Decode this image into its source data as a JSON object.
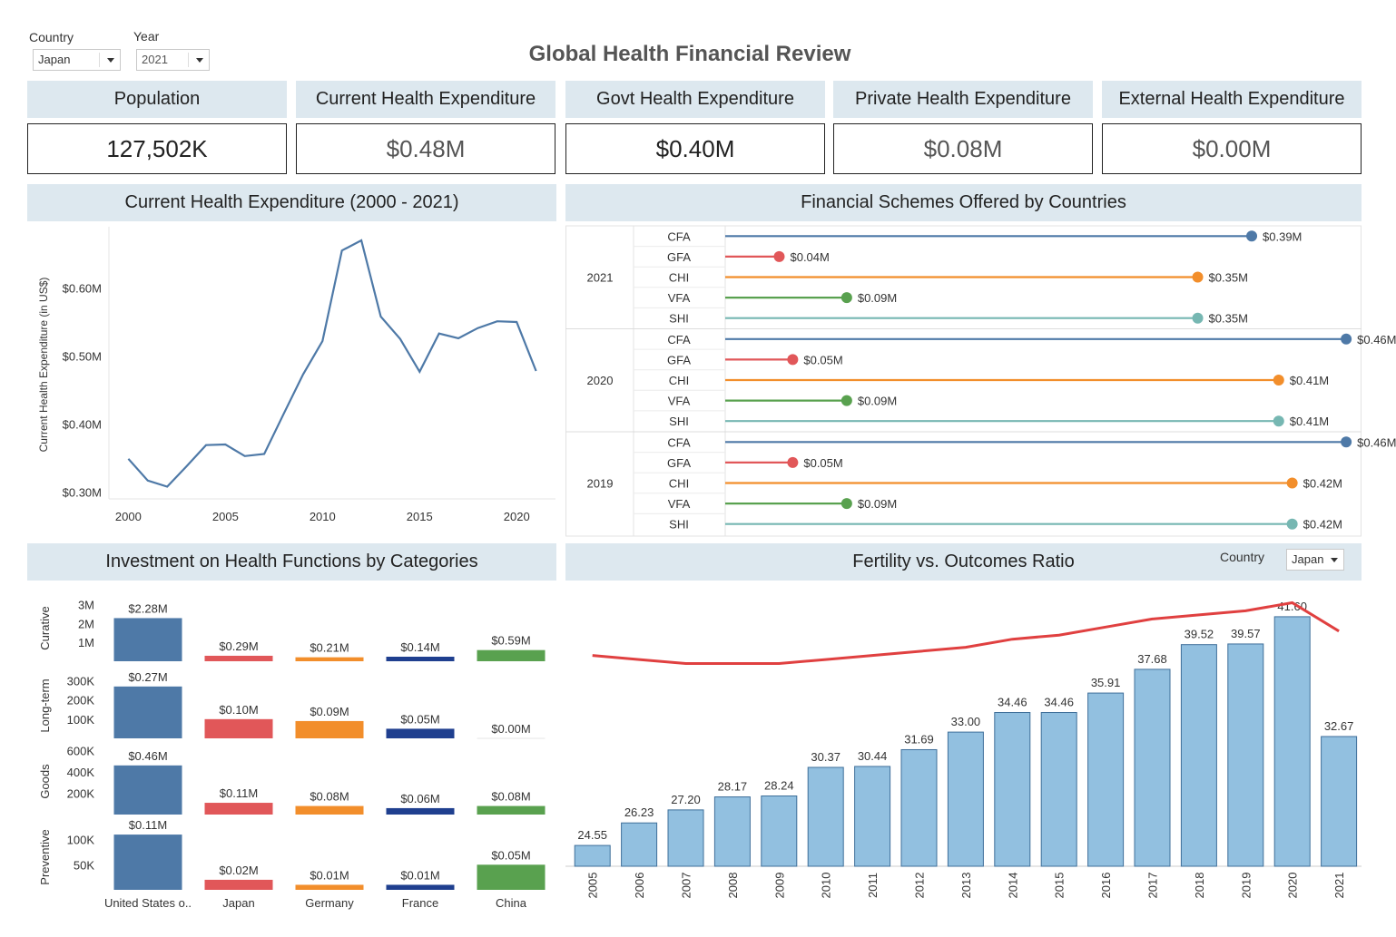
{
  "filters": {
    "country_label": "Country",
    "country_value": "Japan",
    "year_label": "Year",
    "year_value": "2021"
  },
  "dashboard_title": "Global Health Financial Review",
  "kpis": [
    {
      "label": "Population",
      "value": "127,502K"
    },
    {
      "label": "Current Health Expenditure",
      "value": "$0.48M"
    },
    {
      "label": "Govt Health Expenditure",
      "value": "$0.40M"
    },
    {
      "label": "Private Health Expenditure",
      "value": "$0.08M"
    },
    {
      "label": "External Health Expenditure",
      "value": "$0.00M"
    }
  ],
  "panels": {
    "che_title": "Current Health Expenditure (2000 - 2021)",
    "schemes_title": "Financial Schemes Offered by Countries",
    "functions_title": "Investment on Health Functions by Categories",
    "fertility_title": "Fertility vs. Outcomes Ratio",
    "fertility_country_label": "Country",
    "fertility_country_value": "Japan"
  },
  "colors": {
    "header_bg": "#dde8ef",
    "us_blue": "#4e79a7",
    "japan_red": "#e15759",
    "germany_orange": "#f28e2b",
    "france_navy": "#1f3f8f",
    "china_green": "#59a14f",
    "teal": "#76b7b2",
    "light_blue_bar": "#92c0e0",
    "ratio_line": "#e04040"
  },
  "chart_data": [
    {
      "type": "line",
      "title": "Current Health Expenditure (2000 - 2021)",
      "ylabel": "Current Health Expenditure (in US$)",
      "xlabel": "",
      "x_ticks": [
        "2000",
        "2005",
        "2010",
        "2015",
        "2020"
      ],
      "y_ticks": [
        "$0.30M",
        "$0.40M",
        "$0.50M",
        "$0.60M"
      ],
      "ylim": [
        0.29,
        0.69
      ],
      "xlim": [
        1999,
        2022
      ],
      "x": [
        2000,
        2001,
        2002,
        2003,
        2004,
        2005,
        2006,
        2007,
        2008,
        2009,
        2010,
        2011,
        2012,
        2013,
        2014,
        2015,
        2016,
        2017,
        2018,
        2019,
        2020,
        2021
      ],
      "values": [
        0.349,
        0.317,
        0.308,
        0.338,
        0.369,
        0.37,
        0.353,
        0.356,
        0.415,
        0.473,
        0.522,
        0.655,
        0.67,
        0.558,
        0.525,
        0.477,
        0.533,
        0.526,
        0.541,
        0.551,
        0.55,
        0.478
      ],
      "color": "#4e79a7",
      "grid": false
    },
    {
      "type": "bar",
      "title": "Financial Schemes Offered by Countries",
      "orientation": "horizontal-lollipop",
      "groups": [
        {
          "year": "2021",
          "items": [
            {
              "scheme": "CFA",
              "value": 0.39,
              "label": "$0.39M",
              "color": "#4e79a7"
            },
            {
              "scheme": "GFA",
              "value": 0.04,
              "label": "$0.04M",
              "color": "#e15759"
            },
            {
              "scheme": "CHI",
              "value": 0.35,
              "label": "$0.35M",
              "color": "#f28e2b"
            },
            {
              "scheme": "VFA",
              "value": 0.09,
              "label": "$0.09M",
              "color": "#59a14f"
            },
            {
              "scheme": "SHI",
              "value": 0.35,
              "label": "$0.35M",
              "color": "#76b7b2"
            }
          ]
        },
        {
          "year": "2020",
          "items": [
            {
              "scheme": "CFA",
              "value": 0.46,
              "label": "$0.46M",
              "color": "#4e79a7"
            },
            {
              "scheme": "GFA",
              "value": 0.05,
              "label": "$0.05M",
              "color": "#e15759"
            },
            {
              "scheme": "CHI",
              "value": 0.41,
              "label": "$0.41M",
              "color": "#f28e2b"
            },
            {
              "scheme": "VFA",
              "value": 0.09,
              "label": "$0.09M",
              "color": "#59a14f"
            },
            {
              "scheme": "SHI",
              "value": 0.41,
              "label": "$0.41M",
              "color": "#76b7b2"
            }
          ]
        },
        {
          "year": "2019",
          "items": [
            {
              "scheme": "CFA",
              "value": 0.46,
              "label": "$0.46M",
              "color": "#4e79a7"
            },
            {
              "scheme": "GFA",
              "value": 0.05,
              "label": "$0.05M",
              "color": "#e15759"
            },
            {
              "scheme": "CHI",
              "value": 0.42,
              "label": "$0.42M",
              "color": "#f28e2b"
            },
            {
              "scheme": "VFA",
              "value": 0.09,
              "label": "$0.09M",
              "color": "#59a14f"
            },
            {
              "scheme": "SHI",
              "value": 0.42,
              "label": "$0.42M",
              "color": "#76b7b2"
            }
          ]
        }
      ],
      "xlim": [
        0,
        0.47
      ]
    },
    {
      "type": "bar",
      "title": "Investment on Health Functions by Categories",
      "categories": [
        "United States o..",
        "Japan",
        "Germany",
        "France",
        "China"
      ],
      "category_colors": [
        "#4e79a7",
        "#e15759",
        "#f28e2b",
        "#1f3f8f",
        "#59a14f"
      ],
      "rows": [
        {
          "name": "Curative",
          "ylim": [
            0,
            3.5
          ],
          "unit": "M",
          "y_ticks": [
            {
              "value": 1,
              "label": "1M"
            },
            {
              "value": 2,
              "label": "2M"
            },
            {
              "value": 3,
              "label": "3M"
            }
          ],
          "values": [
            2.28,
            0.29,
            0.21,
            0.14,
            0.59
          ],
          "labels": [
            "$2.28M",
            "$0.29M",
            "$0.21M",
            "$0.14M",
            "$0.59M"
          ]
        },
        {
          "name": "Long-term",
          "ylim": [
            0,
            340
          ],
          "unit": "K",
          "y_ticks": [
            {
              "value": 100,
              "label": "100K"
            },
            {
              "value": 200,
              "label": "200K"
            },
            {
              "value": 300,
              "label": "300K"
            }
          ],
          "values": [
            270,
            100,
            90,
            50,
            0
          ],
          "labels": [
            "$0.27M",
            "$0.10M",
            "$0.09M",
            "$0.05M",
            "$0.00M"
          ]
        },
        {
          "name": "Goods",
          "ylim": [
            0,
            620
          ],
          "unit": "K",
          "y_ticks": [
            {
              "value": 200,
              "label": "200K"
            },
            {
              "value": 400,
              "label": "400K"
            },
            {
              "value": 600,
              "label": "600K"
            }
          ],
          "values": [
            460,
            110,
            80,
            60,
            80
          ],
          "labels": [
            "$0.46M",
            "$0.11M",
            "$0.08M",
            "$0.06M",
            "$0.08M"
          ]
        },
        {
          "name": "Preventive",
          "ylim": [
            0,
            130
          ],
          "unit": "K",
          "y_ticks": [
            {
              "value": 50,
              "label": "50K"
            },
            {
              "value": 100,
              "label": "100K"
            }
          ],
          "values": [
            110,
            20,
            10,
            10,
            50
          ],
          "labels": [
            "$0.11M",
            "$0.02M",
            "$0.01M",
            "$0.01M",
            "$0.05M"
          ]
        }
      ]
    },
    {
      "type": "bar",
      "title": "Fertility vs. Outcomes Ratio",
      "categories": [
        "2005",
        "2006",
        "2007",
        "2008",
        "2009",
        "2010",
        "2011",
        "2012",
        "2013",
        "2014",
        "2015",
        "2016",
        "2017",
        "2018",
        "2019",
        "2020",
        "2021"
      ],
      "series": [
        {
          "values": [
            24.55,
            26.23,
            27.2,
            28.17,
            28.24,
            30.37,
            30.44,
            31.69,
            33.0,
            34.46,
            34.46,
            35.91,
            37.68,
            39.52,
            39.57,
            41.6,
            32.67
          ],
          "labels": [
            "24.55",
            "26.23",
            "27.20",
            "28.17",
            "28.24",
            "30.37",
            "30.44",
            "31.69",
            "33.00",
            "34.46",
            "34.46",
            "35.91",
            "37.68",
            "39.52",
            "39.57",
            "41.60",
            "32.67"
          ]
        }
      ],
      "line_overlay": {
        "values": [
          0.83,
          0.82,
          0.81,
          0.81,
          0.81,
          0.82,
          0.83,
          0.84,
          0.85,
          0.87,
          0.88,
          0.9,
          0.92,
          0.93,
          0.94,
          0.96,
          0.89
        ],
        "color": "#e04040"
      },
      "ylim": [
        23,
        42
      ]
    }
  ]
}
